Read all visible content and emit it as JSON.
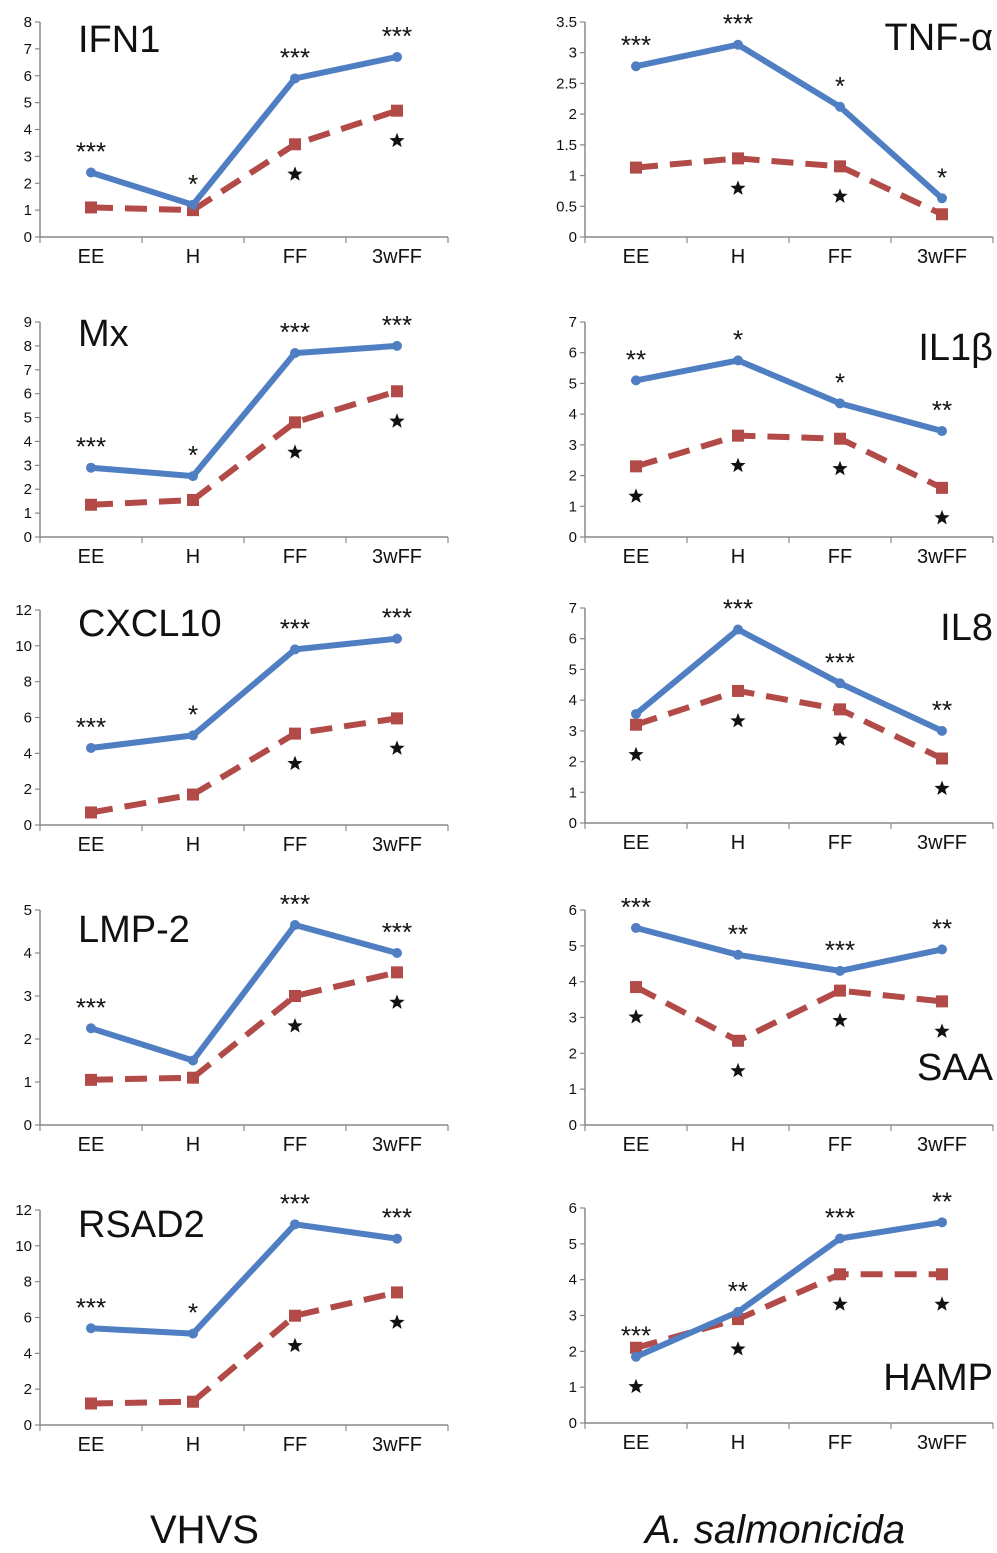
{
  "columns": [
    "VHVS",
    "A. salmonicida"
  ],
  "chart_data": [
    {
      "type": "line",
      "title": "IFN1",
      "categories": [
        "EE",
        "H",
        "FF",
        "3wFF"
      ],
      "ylim": [
        0,
        8
      ],
      "yticks": [
        0,
        1,
        2,
        3,
        4,
        5,
        6,
        7,
        8
      ],
      "series": [
        {
          "values": [
            2.4,
            1.2,
            5.9,
            6.7
          ],
          "annotations": [
            "***",
            "*",
            "***",
            "***"
          ]
        },
        {
          "values": [
            1.1,
            1.0,
            3.45,
            4.7
          ],
          "annotations": [
            "",
            "",
            "★",
            "★"
          ]
        }
      ]
    },
    {
      "type": "line",
      "title": "TNF-α",
      "categories": [
        "EE",
        "H",
        "FF",
        "3wFF"
      ],
      "ylim": [
        0,
        3.5
      ],
      "yticks": [
        0,
        0.5,
        1,
        1.5,
        2,
        2.5,
        3,
        3.5
      ],
      "series": [
        {
          "values": [
            2.78,
            3.13,
            2.12,
            0.63
          ],
          "annotations": [
            "***",
            "***",
            "*",
            "*"
          ]
        },
        {
          "values": [
            1.13,
            1.28,
            1.15,
            0.37
          ],
          "annotations": [
            "",
            "★",
            "★",
            ""
          ]
        }
      ]
    },
    {
      "type": "line",
      "title": "Mx",
      "categories": [
        "EE",
        "H",
        "FF",
        "3wFF"
      ],
      "ylim": [
        0,
        9
      ],
      "yticks": [
        0,
        1,
        2,
        3,
        4,
        5,
        6,
        7,
        8,
        9
      ],
      "series": [
        {
          "values": [
            2.9,
            2.55,
            7.7,
            8.0
          ],
          "annotations": [
            "***",
            "*",
            "***",
            "***"
          ]
        },
        {
          "values": [
            1.35,
            1.55,
            4.8,
            6.1
          ],
          "annotations": [
            "",
            "",
            "★",
            "★"
          ]
        }
      ]
    },
    {
      "type": "line",
      "title": "IL1β",
      "categories": [
        "EE",
        "H",
        "FF",
        "3wFF"
      ],
      "ylim": [
        0,
        7
      ],
      "yticks": [
        0,
        1,
        2,
        3,
        4,
        5,
        6,
        7
      ],
      "series": [
        {
          "values": [
            5.1,
            5.75,
            4.35,
            3.45
          ],
          "annotations": [
            "**",
            "*",
            "*",
            "**"
          ]
        },
        {
          "values": [
            2.3,
            3.3,
            3.2,
            1.6
          ],
          "annotations": [
            "★",
            "★",
            "★",
            "★"
          ]
        }
      ]
    },
    {
      "type": "line",
      "title": "CXCL10",
      "categories": [
        "EE",
        "H",
        "FF",
        "3wFF"
      ],
      "ylim": [
        0,
        12
      ],
      "yticks": [
        0,
        2,
        4,
        6,
        8,
        10,
        12
      ],
      "series": [
        {
          "values": [
            4.3,
            5.0,
            9.8,
            10.4
          ],
          "annotations": [
            "***",
            "*",
            "***",
            "***"
          ]
        },
        {
          "values": [
            0.7,
            1.7,
            5.1,
            5.95
          ],
          "annotations": [
            "",
            "",
            "★",
            "★"
          ]
        }
      ]
    },
    {
      "type": "line",
      "title": "IL8",
      "categories": [
        "EE",
        "H",
        "FF",
        "3wFF"
      ],
      "ylim": [
        0,
        7
      ],
      "yticks": [
        0,
        1,
        2,
        3,
        4,
        5,
        6,
        7
      ],
      "series": [
        {
          "values": [
            3.55,
            6.3,
            4.55,
            3.0
          ],
          "annotations": [
            "",
            "***",
            "***",
            "**"
          ]
        },
        {
          "values": [
            3.2,
            4.3,
            3.7,
            2.1
          ],
          "annotations": [
            "★",
            "★",
            "★",
            "★"
          ]
        }
      ]
    },
    {
      "type": "line",
      "title": "LMP-2",
      "categories": [
        "EE",
        "H",
        "FF",
        "3wFF"
      ],
      "ylim": [
        0,
        5
      ],
      "yticks": [
        0,
        1,
        2,
        3,
        4,
        5
      ],
      "series": [
        {
          "values": [
            2.25,
            1.5,
            4.65,
            4.0
          ],
          "annotations": [
            "***",
            "",
            "***",
            "***"
          ]
        },
        {
          "values": [
            1.05,
            1.1,
            3.0,
            3.55
          ],
          "annotations": [
            "",
            "",
            "★",
            "★"
          ]
        }
      ]
    },
    {
      "type": "line",
      "title": "SAA",
      "categories": [
        "EE",
        "H",
        "FF",
        "3wFF"
      ],
      "ylim": [
        0,
        6
      ],
      "yticks": [
        0,
        1,
        2,
        3,
        4,
        5,
        6
      ],
      "series": [
        {
          "values": [
            5.5,
            4.75,
            4.3,
            4.9
          ],
          "annotations": [
            "***",
            "**",
            "***",
            "**"
          ]
        },
        {
          "values": [
            3.85,
            2.35,
            3.75,
            3.45
          ],
          "annotations": [
            "★",
            "★",
            "★",
            "★"
          ]
        }
      ]
    },
    {
      "type": "line",
      "title": "RSAD2",
      "categories": [
        "EE",
        "H",
        "FF",
        "3wFF"
      ],
      "ylim": [
        0,
        12
      ],
      "yticks": [
        0,
        2,
        4,
        6,
        8,
        10,
        12
      ],
      "series": [
        {
          "values": [
            5.4,
            5.1,
            11.2,
            10.4
          ],
          "annotations": [
            "***",
            "*",
            "***",
            "***"
          ]
        },
        {
          "values": [
            1.2,
            1.3,
            6.1,
            7.4
          ],
          "annotations": [
            "",
            "",
            "★",
            "★"
          ]
        }
      ]
    },
    {
      "type": "line",
      "title": "HAMP",
      "categories": [
        "EE",
        "H",
        "FF",
        "3wFF"
      ],
      "ylim": [
        0,
        6
      ],
      "yticks": [
        0,
        1,
        2,
        3,
        4,
        5,
        6
      ],
      "series": [
        {
          "values": [
            1.85,
            3.1,
            5.15,
            5.6
          ],
          "annotations": [
            "***",
            "**",
            "***",
            "**"
          ]
        },
        {
          "values": [
            2.1,
            2.9,
            4.15,
            4.15
          ],
          "annotations": [
            "★",
            "★",
            "★",
            "★"
          ]
        }
      ]
    }
  ],
  "colors": {
    "series_1": "#4f7fc2",
    "series_2": "#b24a48",
    "axis": "#888888",
    "text": "#111111"
  }
}
